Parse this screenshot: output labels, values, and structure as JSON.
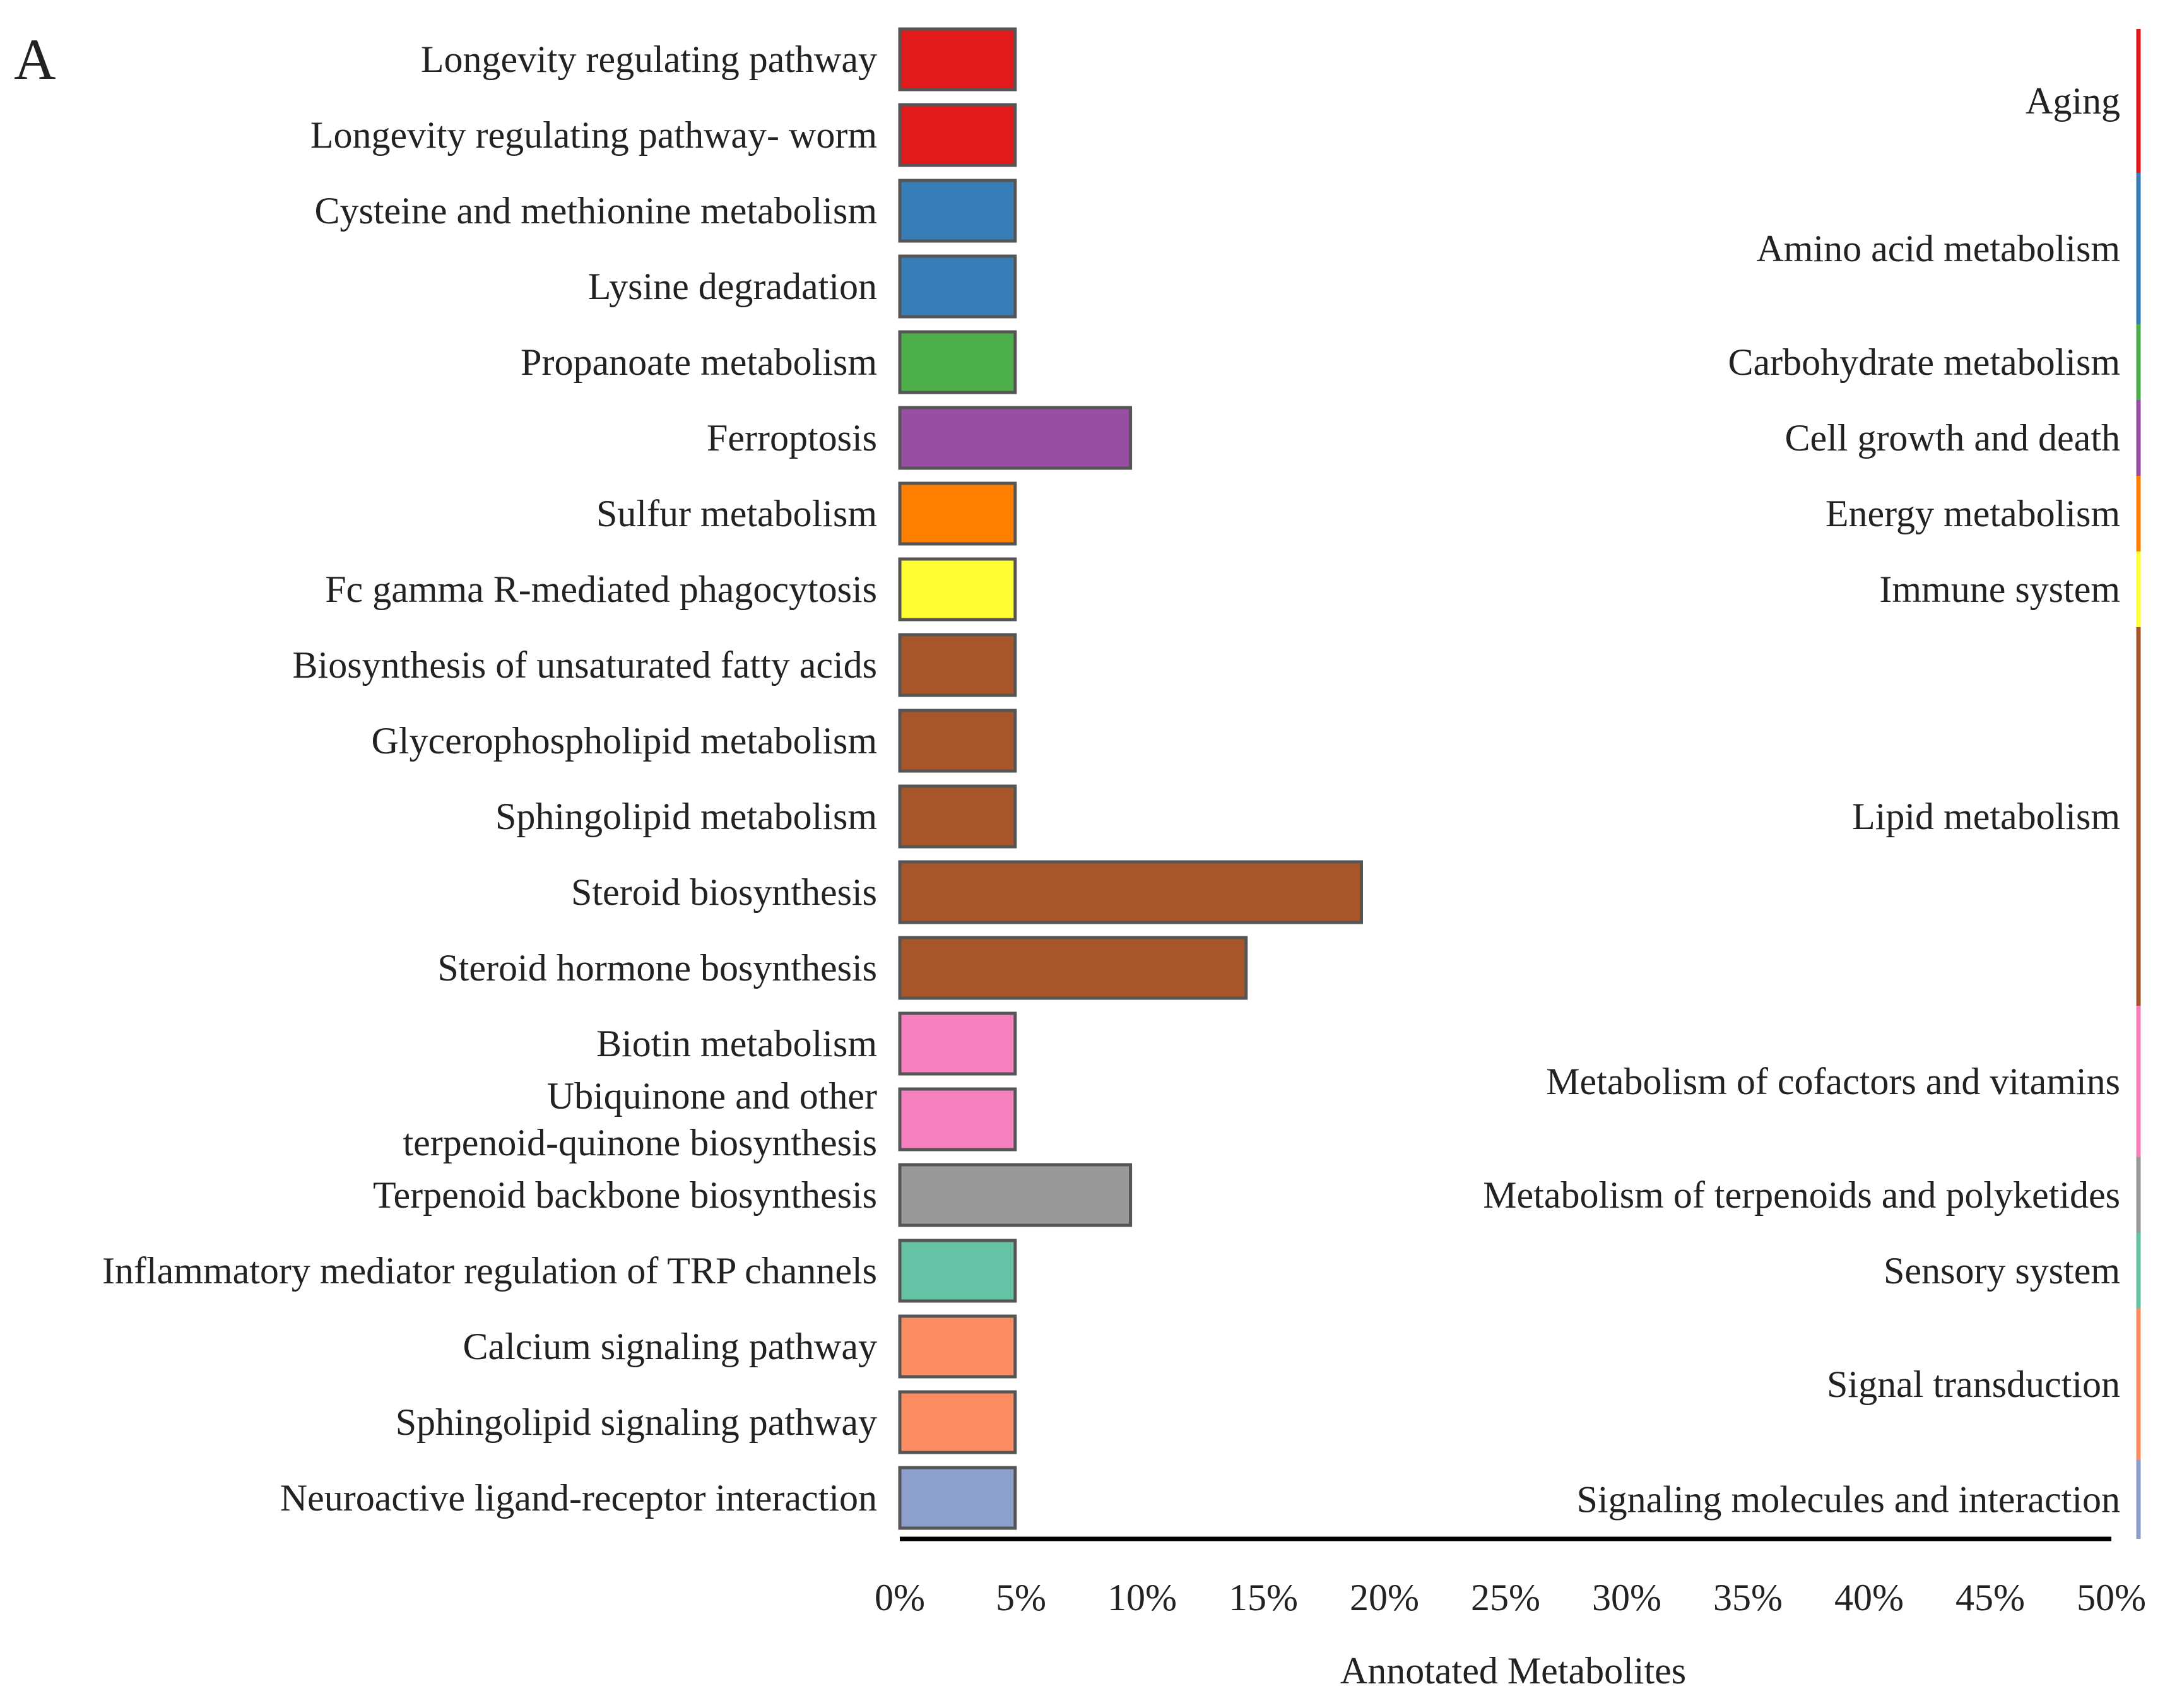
{
  "panel_label": "A",
  "chart_data": {
    "type": "bar",
    "orientation": "horizontal",
    "xlabel": "Annotated Metabolites",
    "xlim": [
      0,
      50
    ],
    "xticks": [
      0,
      5,
      10,
      15,
      20,
      25,
      30,
      35,
      40,
      45,
      50
    ],
    "xtick_labels": [
      "0%",
      "5%",
      "10%",
      "15%",
      "20%",
      "25%",
      "30%",
      "35%",
      "40%",
      "45%",
      "50%"
    ],
    "categories": [
      "Longevity regulating pathway",
      "Longevity regulating pathway- worm",
      "Cysteine and methionine metabolism",
      "Lysine degradation",
      "Propanoate metabolism",
      "Ferroptosis",
      "Sulfur metabolism",
      "Fc gamma R-mediated phagocytosis",
      "Biosynthesis of unsaturated fatty acids",
      "Glycerophospholipid metabolism",
      "Sphingolipid metabolism",
      "Steroid biosynthesis",
      "Steroid hormone bosynthesis",
      "Biotin metabolism",
      "Ubiquinone and other\nterpenoid-quinone biosynthesis",
      "Terpenoid backbone biosynthesis",
      "Inflammatory mediator regulation of TRP channels",
      "Calcium signaling pathway",
      "Sphingolipid signaling pathway",
      "Neuroactive ligand-receptor interaction"
    ],
    "values": [
      4.76,
      4.76,
      4.76,
      4.76,
      4.76,
      9.52,
      4.76,
      4.76,
      4.76,
      4.76,
      4.76,
      19.05,
      14.29,
      4.76,
      4.76,
      9.52,
      4.76,
      4.76,
      4.76,
      4.76
    ],
    "group_of_bar": [
      0,
      0,
      1,
      1,
      2,
      3,
      4,
      5,
      6,
      6,
      6,
      6,
      6,
      7,
      7,
      8,
      9,
      10,
      10,
      11
    ],
    "groups": [
      {
        "name": "Aging",
        "color": "#e31a1c"
      },
      {
        "name": "Amino acid metabolism",
        "color": "#377eb8"
      },
      {
        "name": "Carbohydrate metabolism",
        "color": "#4daf4a"
      },
      {
        "name": "Cell growth and death",
        "color": "#984ea3"
      },
      {
        "name": "Energy metabolism",
        "color": "#ff7f00"
      },
      {
        "name": "Immune system",
        "color": "#ffff33"
      },
      {
        "name": "Lipid metabolism",
        "color": "#a65628"
      },
      {
        "name": "Metabolism of cofactors and vitamins",
        "color": "#f781bf"
      },
      {
        "name": "Metabolism of terpenoids and polyketides",
        "color": "#999999"
      },
      {
        "name": "Sensory system",
        "color": "#66c2a5"
      },
      {
        "name": "Signal transduction",
        "color": "#fc8d62"
      },
      {
        "name": "Signaling molecules and interaction",
        "color": "#8da0cb"
      }
    ]
  }
}
